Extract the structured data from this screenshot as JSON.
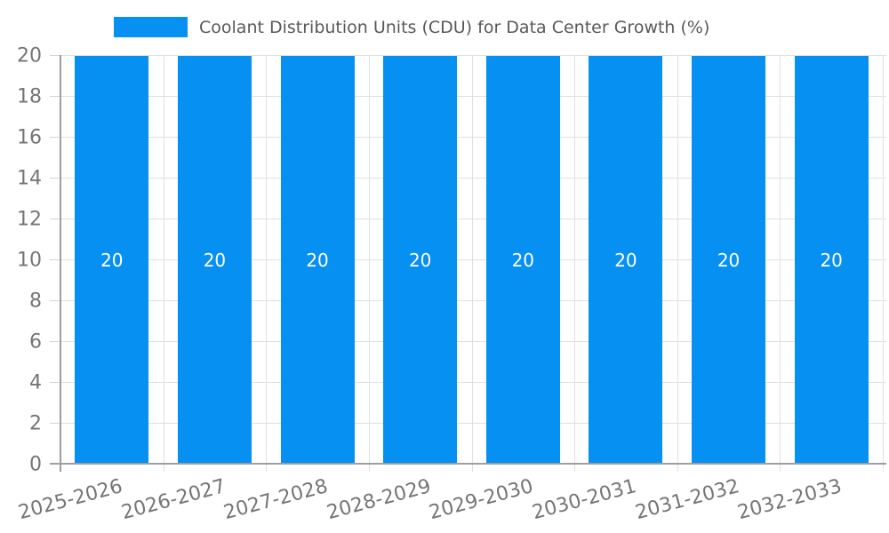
{
  "chart_data": {
    "type": "bar",
    "title": "",
    "legend": {
      "label": "Coolant Distribution Units (CDU) for Data Center Growth (%)",
      "position": "top"
    },
    "categories": [
      "2025-2026",
      "2026-2027",
      "2027-2028",
      "2028-2029",
      "2029-2030",
      "2030-2031",
      "2031-2032",
      "2032-2033"
    ],
    "series": [
      {
        "name": "Coolant Distribution Units (CDU) for Data Center Growth (%)",
        "values": [
          20,
          20,
          20,
          20,
          20,
          20,
          20,
          20
        ]
      }
    ],
    "bar_value_labels": [
      "20",
      "20",
      "20",
      "20",
      "20",
      "20",
      "20",
      "20"
    ],
    "xlabel": "",
    "ylabel": "",
    "ylim": [
      0,
      20
    ],
    "ytick_step": 2,
    "ytick_labels": [
      "0",
      "2",
      "4",
      "6",
      "8",
      "10",
      "12",
      "14",
      "16",
      "18",
      "20"
    ],
    "grid": true,
    "colors": {
      "bar": "#0690f2",
      "grid": "#e0e0e0",
      "axis": "#9e9e9e",
      "tick_text": "#757575",
      "legend_text": "#595959",
      "value_label": "#ffffff",
      "background": "#ffffff"
    }
  }
}
